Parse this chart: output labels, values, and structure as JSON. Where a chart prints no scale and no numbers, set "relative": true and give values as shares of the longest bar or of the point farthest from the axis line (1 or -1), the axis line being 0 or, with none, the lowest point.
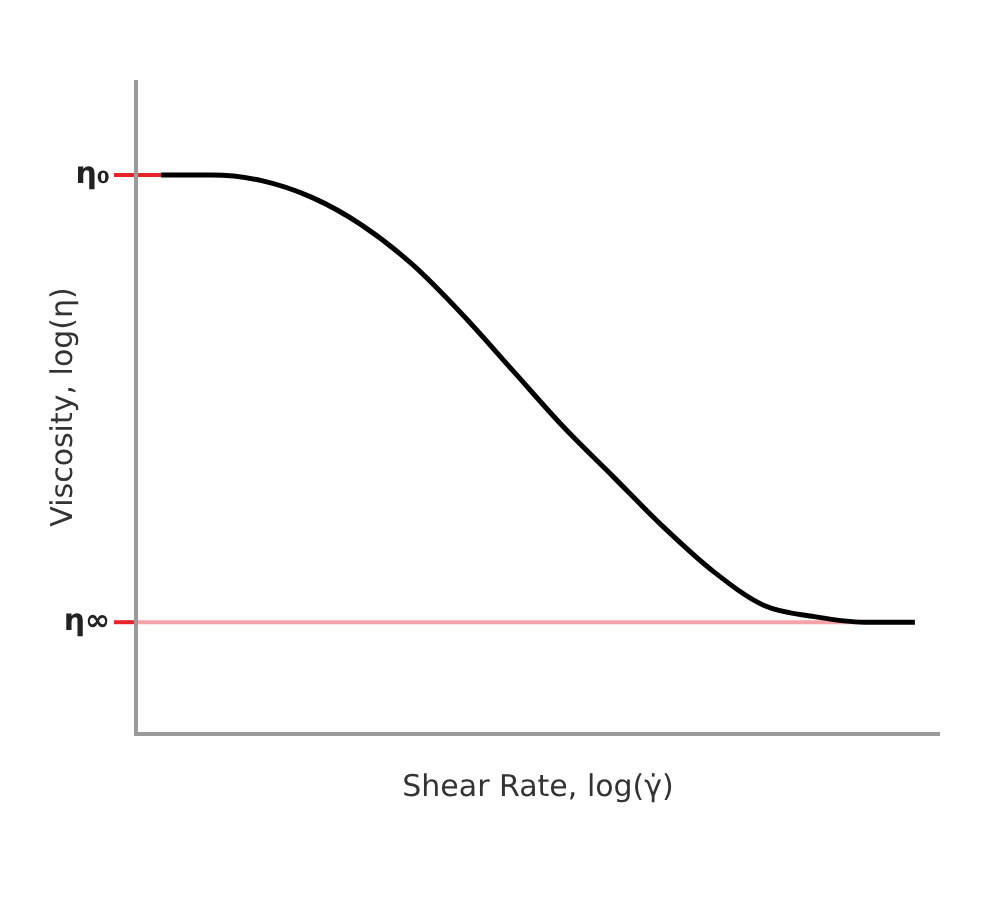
{
  "chart_data": {
    "type": "line",
    "relative": true,
    "xlabel": "Shear Rate, log(γ̇)",
    "ylabel": "Viscosity, log(η)",
    "categories": [
      null,
      null,
      null,
      null,
      null,
      null,
      null,
      null,
      null,
      null,
      null,
      null,
      null,
      null,
      null,
      null
    ],
    "series": [
      {
        "color": "#000000",
        "values": [
          1,
          1,
          0.99,
          0.96,
          0.91,
          0.84,
          0.75,
          0.65,
          0.55,
          0.46,
          0.37,
          0.29,
          0.23,
          0.21,
          0.2,
          0.2
        ]
      }
    ],
    "marker": "none",
    "ref_lines": [
      {
        "axis": "y",
        "value": 1,
        "label": "η₀",
        "color": "#e8232a"
      },
      {
        "axis": "y",
        "value": 0.2,
        "label": "η∞",
        "color": "#f5a3a8"
      }
    ]
  }
}
